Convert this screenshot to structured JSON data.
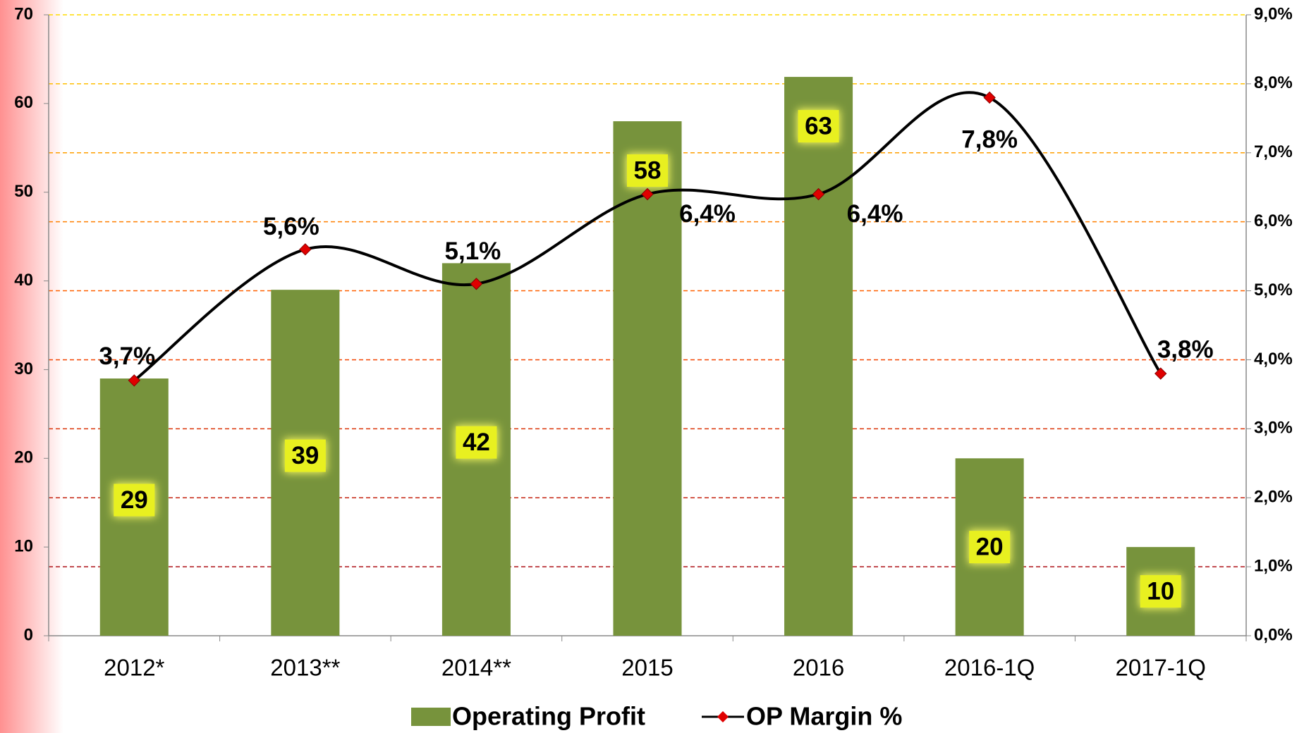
{
  "chart_data": {
    "type": "bar",
    "categories": [
      "2012*",
      "2013**",
      "2014**",
      "2015",
      "2016",
      "2016-1Q",
      "2017-1Q"
    ],
    "series": [
      {
        "name": "Operating Profit",
        "color": "#77933c",
        "values": [
          29,
          39,
          42,
          58,
          63,
          20,
          10
        ]
      },
      {
        "name": "OP Margin %",
        "color": "#000000",
        "marker_color": "#e00000",
        "axis": "y2",
        "type": "line",
        "values": [
          3.7,
          5.6,
          5.1,
          6.4,
          6.4,
          7.8,
          3.8
        ],
        "value_labels": [
          "3,7%",
          "5,6%",
          "5,1%",
          "6,4%",
          "6,4%",
          "7,8%",
          "3,8%"
        ]
      }
    ],
    "ylim": [
      0,
      70
    ],
    "yticks": [
      0,
      10,
      20,
      30,
      40,
      50,
      60,
      70
    ],
    "y2lim": [
      0,
      9
    ],
    "y2ticks": [
      {
        "value": 0,
        "label": "0,0%"
      },
      {
        "value": 1,
        "label": "1,0%"
      },
      {
        "value": 2,
        "label": "2,0%"
      },
      {
        "value": 3,
        "label": "3,0%"
      },
      {
        "value": 4,
        "label": "4,0%"
      },
      {
        "value": 5,
        "label": "5,0%"
      },
      {
        "value": 6,
        "label": "6,0%"
      },
      {
        "value": 7,
        "label": "7,0%"
      },
      {
        "value": 8,
        "label": "8,0%"
      },
      {
        "value": 9,
        "label": "9,0%"
      }
    ],
    "grid": true,
    "legend": "bottom"
  }
}
